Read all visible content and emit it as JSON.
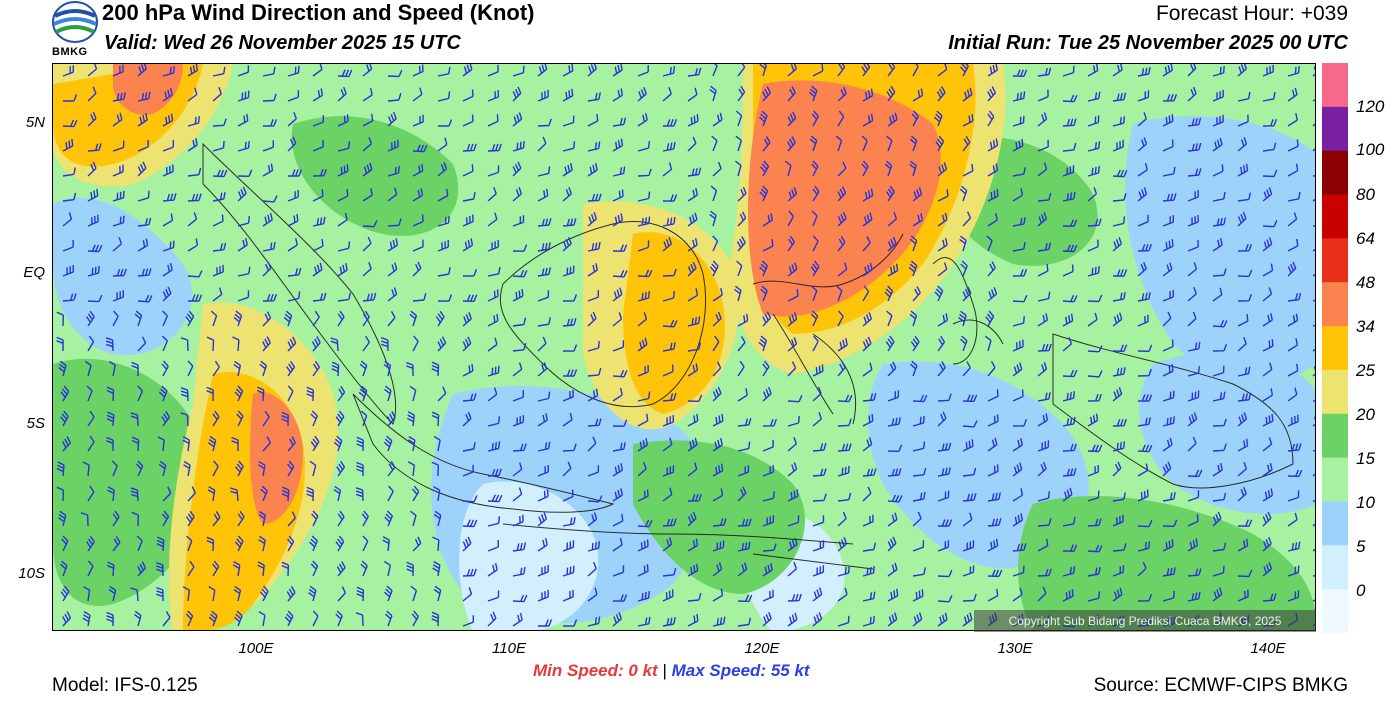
{
  "header": {
    "title": "200 hPa Wind Direction and Speed (Knot)",
    "valid": "Valid: Wed 26 November 2025 15 UTC",
    "forecast_hour": "Forecast Hour: +039",
    "initial_run": "Initial Run: Tue 25 November 2025 00 UTC",
    "logo_text": "BMKG"
  },
  "axes": {
    "lat_labels": [
      "5N",
      "EQ",
      "5S",
      "10S"
    ],
    "lon_labels": [
      "100E",
      "110E",
      "120E",
      "130E",
      "140E"
    ]
  },
  "colorbar": {
    "labels": [
      "120",
      "100",
      "80",
      "64",
      "48",
      "34",
      "25",
      "20",
      "15",
      "10",
      "5",
      "0"
    ],
    "colors": [
      "#f56a8a",
      "#7a1fa2",
      "#8b0000",
      "#c80000",
      "#e83018",
      "#fb8350",
      "#ffc407",
      "#ede371",
      "#6bd266",
      "#a6f2a0",
      "#9dd3fa",
      "#d2efff",
      "#eef8ff"
    ]
  },
  "footer": {
    "min_speed_label": "Min Speed:",
    "min_speed_value": "0 kt",
    "separator": "|",
    "max_speed_label": "Max Speed:",
    "max_speed_value": "55 kt",
    "model": "Model: IFS-0.125",
    "source": "Source: ECMWF-CIPS BMKG",
    "copyright": "Copyright Sub Bidang Prediksi Cuaca BMKG, 2025"
  }
}
